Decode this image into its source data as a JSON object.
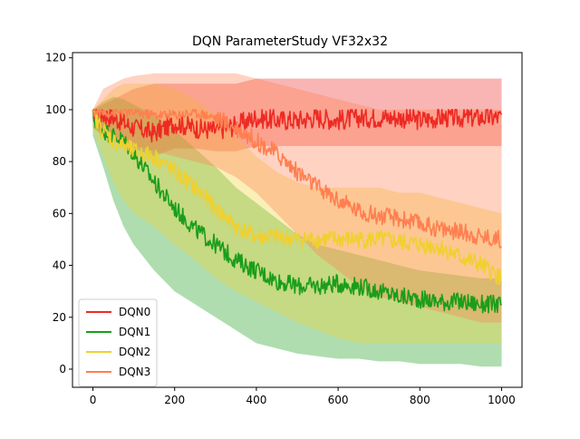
{
  "chart_data": {
    "type": "line",
    "title": "DQN ParameterStudy VF32x32",
    "xlabel": "",
    "ylabel": "",
    "xlim": [
      -50,
      1050
    ],
    "ylim": [
      -7,
      122
    ],
    "xticks": [
      0,
      200,
      400,
      600,
      800,
      1000
    ],
    "yticks": [
      0,
      20,
      40,
      60,
      80,
      100,
      120
    ],
    "x_tick_labels": [
      "0",
      "200",
      "400",
      "600",
      "800",
      "1000"
    ],
    "y_tick_labels": [
      "0",
      "20",
      "40",
      "60",
      "80",
      "100",
      "120"
    ],
    "grid": false,
    "legend_position": "lower-left",
    "note": "Each series is a noisy mean line with a shaded min-max band; values below are approximate smoothed readings of the mean and band.",
    "x": [
      0,
      25,
      50,
      75,
      100,
      150,
      200,
      250,
      300,
      350,
      400,
      450,
      500,
      550,
      600,
      650,
      700,
      750,
      800,
      850,
      900,
      950,
      1000
    ],
    "series": [
      {
        "name": "DQN0",
        "color": "#ee2a24",
        "mean": [
          100,
          98,
          97,
          95,
          93,
          91,
          95,
          93,
          92,
          94,
          97,
          96,
          96,
          97,
          96,
          97,
          97,
          97,
          96,
          97,
          97,
          97,
          97
        ],
        "upper": [
          100,
          102,
          104,
          106,
          108,
          110,
          110,
          110,
          110,
          110,
          112,
          112,
          112,
          112,
          112,
          112,
          112,
          112,
          112,
          112,
          112,
          112,
          112
        ],
        "lower": [
          93,
          90,
          88,
          86,
          85,
          82,
          85,
          85,
          84,
          84,
          86,
          86,
          86,
          86,
          86,
          86,
          86,
          86,
          86,
          86,
          86,
          86,
          86
        ]
      },
      {
        "name": "DQN1",
        "color": "#1a9e1a",
        "mean": [
          97,
          92,
          90,
          88,
          83,
          72,
          62,
          54,
          48,
          42,
          38,
          34,
          32,
          32,
          33,
          32,
          30,
          28,
          27,
          26,
          26,
          25,
          25
        ],
        "upper": [
          100,
          103,
          105,
          104,
          102,
          98,
          92,
          85,
          78,
          70,
          64,
          58,
          52,
          48,
          46,
          44,
          42,
          40,
          38,
          37,
          36,
          35,
          35
        ],
        "lower": [
          90,
          78,
          65,
          55,
          48,
          38,
          30,
          25,
          20,
          15,
          10,
          8,
          6,
          5,
          4,
          4,
          3,
          3,
          2,
          2,
          2,
          1,
          1
        ]
      },
      {
        "name": "DQN2",
        "color": "#f0d030",
        "mean": [
          98,
          92,
          88,
          86,
          84,
          82,
          76,
          70,
          62,
          55,
          51,
          51,
          50,
          50,
          50,
          50,
          50,
          49,
          48,
          47,
          43,
          40,
          35
        ],
        "upper": [
          100,
          104,
          108,
          110,
          110,
          110,
          108,
          104,
          98,
          90,
          82,
          76,
          72,
          70,
          70,
          70,
          70,
          68,
          68,
          66,
          64,
          62,
          60
        ],
        "lower": [
          92,
          82,
          72,
          65,
          60,
          55,
          48,
          42,
          35,
          30,
          26,
          22,
          18,
          15,
          12,
          10,
          10,
          10,
          10,
          10,
          10,
          10,
          10
        ]
      },
      {
        "name": "DQN3",
        "color": "#ff7f50",
        "mean": [
          99,
          99,
          99,
          99,
          99,
          98,
          98,
          99,
          97,
          93,
          88,
          83,
          76,
          70,
          65,
          61,
          59,
          58,
          56,
          54,
          53,
          51,
          50
        ],
        "upper": [
          100,
          108,
          110,
          112,
          113,
          114,
          114,
          114,
          114,
          114,
          112,
          110,
          108,
          106,
          104,
          102,
          100,
          100,
          100,
          100,
          100,
          100,
          100
        ],
        "lower": [
          95,
          92,
          90,
          88,
          86,
          84,
          82,
          80,
          78,
          74,
          68,
          60,
          52,
          44,
          38,
          32,
          28,
          26,
          24,
          22,
          20,
          18,
          18
        ]
      }
    ]
  }
}
